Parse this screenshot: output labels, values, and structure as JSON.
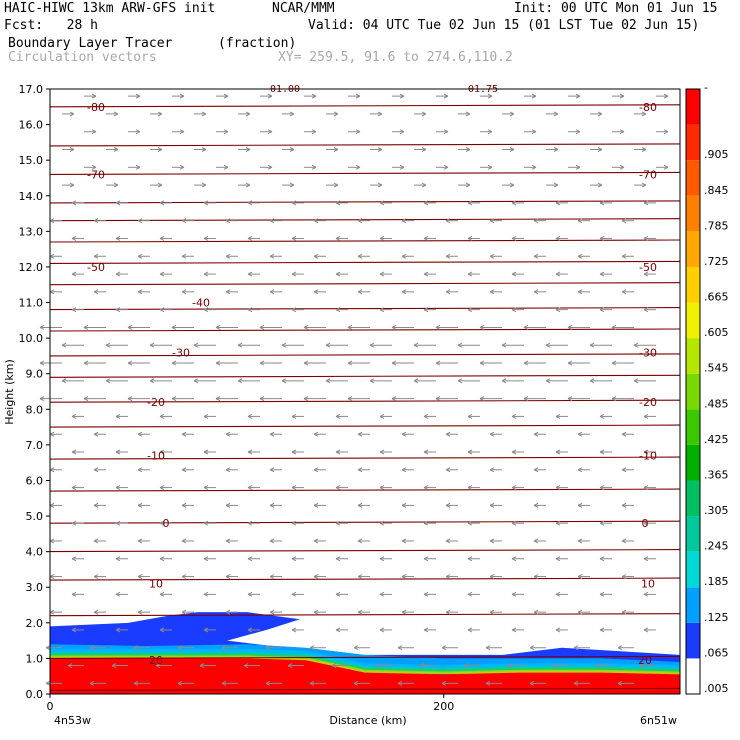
{
  "header": {
    "model": "HAIC-HIWC 13km ARW-GFS init",
    "org": "NCAR/MMM",
    "init": "Init: 00 UTC Mon 01 Jun 15",
    "fcst": "Fcst:   28 h",
    "valid": "Valid: 04 UTC Tue 02 Jun 15 (01 LST Tue 02 Jun 15)",
    "field": "Boundary Layer Tracer",
    "units": "(fraction)",
    "overlay": "Circulation vectors",
    "xy": "XY= 259.5, 91.6 to 274.6,110.2"
  },
  "chart_data": {
    "type": "area",
    "title": "Boundary Layer Tracer",
    "ylabel": "Height (km)",
    "xlabel": "Distance (km)",
    "ylim": [
      0,
      17
    ],
    "xlim": [
      0,
      320
    ],
    "yticks": [
      "0.0",
      "1.0",
      "2.0",
      "3.0",
      "4.0",
      "5.0",
      "6.0",
      "7.0",
      "8.0",
      "9.0",
      "10.0",
      "11.0",
      "12.0",
      "13.0",
      "14.0",
      "15.0",
      "16.0",
      "17.0"
    ],
    "xticks": [
      "0",
      "200"
    ],
    "x_endpoints": {
      "left": "4n53w",
      "right": "6n51w"
    },
    "colorbar": {
      "labels": [
        ".005",
        ".065",
        ".125",
        ".185",
        ".245",
        ".305",
        ".365",
        ".425",
        ".485",
        ".545",
        ".605",
        ".665",
        ".725",
        ".785",
        ".845",
        ".905",
        "-"
      ],
      "colors": [
        "#ffffff",
        "#1a3cff",
        "#00a0ff",
        "#00d8d8",
        "#00c89c",
        "#00c060",
        "#00b000",
        "#3cc800",
        "#78d800",
        "#b4e600",
        "#f0f000",
        "#ffd000",
        "#ffa800",
        "#ff8000",
        "#ff5a00",
        "#ff2a00",
        "#ff0000"
      ]
    },
    "isotherms": [
      {
        "label": "-80",
        "y": 16.5,
        "dy": -0.15
      },
      {
        "label": "-70",
        "y": 14.6,
        "dy": -0.1
      },
      {
        "label": "-50",
        "y": 12.0,
        "dy": -0.1
      },
      {
        "label": "-40",
        "y": 11.0,
        "dy": 0
      },
      {
        "label": "-30",
        "y": 9.6,
        "dy": -0.1
      },
      {
        "label": "-20",
        "y": 8.2,
        "dy": -0.1
      },
      {
        "label": "-10",
        "y": 6.7,
        "dy": -0.1
      },
      {
        "label": "0",
        "y": 4.8,
        "dy": 0.2
      },
      {
        "label": "10",
        "y": 3.1,
        "dy": -0.1
      },
      {
        "label": "20",
        "y": 0.95,
        "dy": 0
      }
    ],
    "top_labels": [
      "01.00",
      "01.75"
    ],
    "isobar_levels": [
      0.1,
      1.0,
      2.2,
      3.2,
      4.0,
      4.8,
      5.7,
      6.6,
      7.5,
      8.2,
      8.9,
      9.5,
      10.2,
      10.8,
      11.5,
      12.1,
      12.7,
      13.3,
      13.8,
      14.6,
      15.4,
      16.5
    ],
    "tracer_layers": [
      {
        "level": ".005",
        "top": [
          [
            0,
            1.9
          ],
          [
            40,
            2.0
          ],
          [
            60,
            2.2
          ],
          [
            75,
            2.3
          ],
          [
            100,
            2.3
          ],
          [
            127,
            2.1
          ],
          [
            110,
            1.8
          ],
          [
            90,
            1.5
          ],
          [
            120,
            1.3
          ],
          [
            150,
            1.1
          ],
          [
            200,
            1.1
          ],
          [
            230,
            1.1
          ],
          [
            260,
            1.3
          ],
          [
            290,
            1.2
          ],
          [
            320,
            1.1
          ]
        ]
      },
      {
        "level": ".125",
        "top": [
          [
            0,
            1.4
          ],
          [
            50,
            1.35
          ],
          [
            100,
            1.4
          ],
          [
            130,
            1.3
          ],
          [
            160,
            1.1
          ],
          [
            200,
            1.0
          ],
          [
            240,
            1.0
          ],
          [
            280,
            1.0
          ],
          [
            320,
            0.9
          ]
        ]
      },
      {
        "level": ".905",
        "top": [
          [
            0,
            1.0
          ],
          [
            60,
            1.0
          ],
          [
            100,
            1.0
          ],
          [
            130,
            0.95
          ],
          [
            160,
            0.6
          ],
          [
            200,
            0.55
          ],
          [
            240,
            0.6
          ],
          [
            280,
            0.6
          ],
          [
            320,
            0.55
          ]
        ]
      }
    ]
  }
}
